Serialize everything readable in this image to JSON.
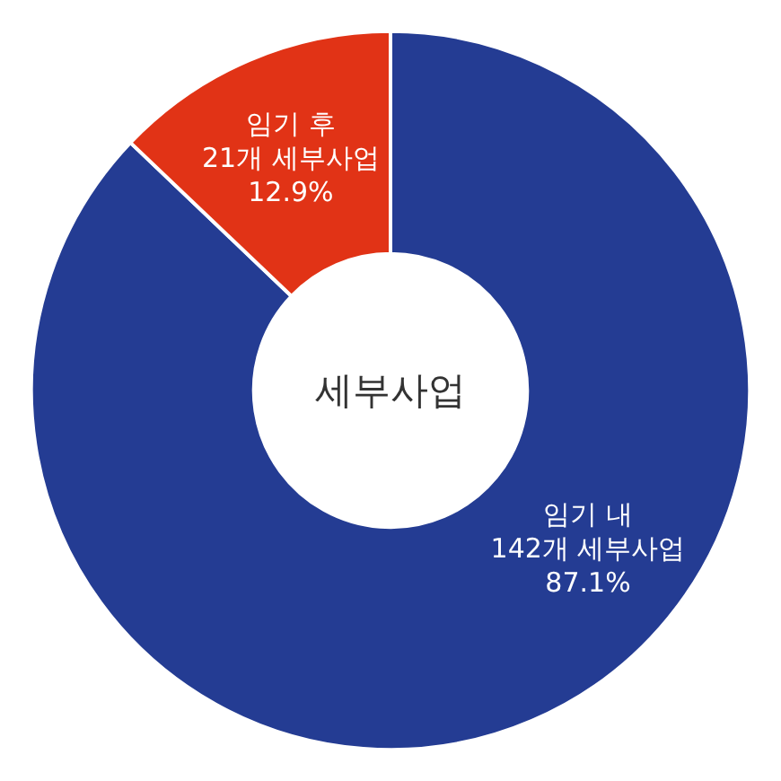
{
  "chart_data": {
    "type": "donut",
    "title": "세부사업",
    "categories": [
      "임기 내",
      "임기 후"
    ],
    "values": [
      142,
      21
    ],
    "value_labels": [
      "142개 세부사업\n87.1%",
      "21개 세부사업\n12.9%"
    ],
    "colors": [
      "#243c93",
      "#e13316"
    ]
  }
}
